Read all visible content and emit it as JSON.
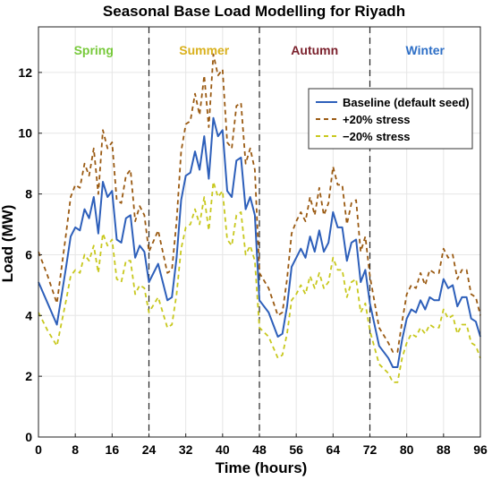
{
  "chart_data": {
    "type": "line",
    "title": "Seasonal Base Load Modelling for Riyadh",
    "xlabel": "Time (hours)",
    "ylabel": "Load (MW)",
    "xlim": [
      0,
      96
    ],
    "ylim": [
      0,
      13.5
    ],
    "xticks": [
      0,
      8,
      16,
      24,
      32,
      40,
      48,
      56,
      64,
      72,
      80,
      88,
      96
    ],
    "yticks": [
      0,
      2,
      4,
      6,
      8,
      10,
      12
    ],
    "grid": true,
    "legend_position": "top-right",
    "season_dividers": [
      24,
      48,
      72
    ],
    "seasons": [
      {
        "name": "Spring",
        "x": 12,
        "color": "#77c93a"
      },
      {
        "name": "Summer",
        "x": 36,
        "color": "#d9b01c"
      },
      {
        "name": "Autumn",
        "x": 60,
        "color": "#7a1f2b"
      },
      {
        "name": "Winter",
        "x": 84,
        "color": "#2e6fc6"
      }
    ],
    "x": [
      0,
      2,
      4,
      6,
      7,
      8,
      9,
      10,
      11,
      12,
      13,
      14,
      15,
      16,
      17,
      18,
      19,
      20,
      21,
      22,
      23,
      24,
      26,
      28,
      29,
      30,
      31,
      32,
      33,
      34,
      35,
      36,
      37,
      38,
      39,
      40,
      41,
      42,
      43,
      44,
      45,
      46,
      47,
      48,
      50,
      52,
      53,
      54,
      55,
      56,
      57,
      58,
      59,
      60,
      61,
      62,
      63,
      64,
      65,
      66,
      67,
      68,
      69,
      70,
      71,
      72,
      74,
      76,
      77,
      78,
      79,
      80,
      81,
      82,
      83,
      84,
      85,
      86,
      87,
      88,
      89,
      90,
      91,
      92,
      93,
      94,
      95,
      96
    ],
    "series": [
      {
        "name": "Baseline (default seed)",
        "color": "#2d5fba",
        "dash": "solid",
        "values": [
          5.1,
          4.4,
          3.7,
          5.6,
          6.6,
          6.9,
          6.8,
          7.5,
          7.2,
          7.9,
          6.7,
          8.4,
          7.9,
          8.1,
          6.5,
          6.4,
          7.2,
          7.3,
          5.9,
          6.3,
          6.1,
          5.1,
          5.7,
          4.5,
          4.6,
          5.9,
          7.8,
          8.6,
          8.7,
          9.4,
          8.8,
          9.9,
          8.5,
          10.5,
          9.9,
          10.1,
          8.1,
          7.9,
          9.1,
          9.2,
          7.5,
          7.9,
          7.3,
          4.5,
          4.1,
          3.3,
          3.4,
          4.3,
          5.6,
          5.9,
          6.2,
          5.9,
          6.6,
          6.1,
          6.8,
          6.1,
          6.4,
          7.4,
          6.9,
          6.9,
          5.8,
          6.4,
          6.5,
          5.1,
          5.5,
          4.4,
          3.0,
          2.6,
          2.3,
          2.3,
          3.2,
          3.9,
          4.2,
          4.1,
          4.5,
          4.2,
          4.6,
          4.5,
          4.5,
          5.2,
          4.9,
          5.0,
          4.3,
          4.6,
          4.6,
          3.9,
          3.8,
          3.3
        ]
      },
      {
        "name": "+20% stress",
        "color": "#9a5a12",
        "dash": "dashed",
        "values": [
          6.1,
          5.3,
          4.4,
          6.7,
          7.9,
          8.3,
          8.2,
          9.0,
          8.6,
          9.5,
          8.0,
          10.1,
          9.5,
          9.7,
          7.8,
          7.7,
          8.6,
          8.8,
          7.1,
          7.6,
          7.3,
          6.1,
          6.8,
          5.4,
          5.5,
          7.1,
          9.4,
          10.3,
          10.4,
          11.3,
          10.6,
          11.9,
          10.2,
          12.6,
          11.9,
          12.1,
          9.7,
          9.5,
          10.9,
          11.0,
          9.0,
          9.5,
          8.8,
          5.4,
          4.9,
          4.0,
          4.1,
          5.2,
          6.7,
          7.1,
          7.4,
          7.1,
          7.9,
          7.3,
          8.2,
          7.3,
          7.7,
          8.9,
          8.3,
          8.3,
          7.0,
          7.7,
          7.8,
          6.1,
          6.6,
          5.3,
          3.6,
          3.1,
          2.8,
          2.8,
          3.8,
          4.7,
          5.0,
          4.9,
          5.4,
          5.0,
          5.5,
          5.4,
          5.4,
          6.2,
          5.9,
          6.0,
          5.2,
          5.5,
          5.5,
          4.7,
          4.6,
          4.0
        ]
      },
      {
        "name": "−20% stress",
        "color": "#c8c81e",
        "dash": "dashed",
        "values": [
          4.1,
          3.5,
          3.0,
          4.5,
          5.3,
          5.5,
          5.4,
          6.0,
          5.8,
          6.3,
          5.4,
          6.7,
          6.3,
          6.5,
          5.2,
          5.1,
          5.8,
          5.8,
          4.7,
          5.0,
          4.9,
          4.1,
          4.6,
          3.6,
          3.7,
          4.7,
          6.2,
          6.9,
          7.0,
          7.5,
          7.0,
          7.9,
          6.8,
          8.4,
          7.9,
          8.1,
          6.5,
          6.3,
          7.3,
          7.4,
          6.0,
          6.3,
          5.8,
          3.6,
          3.3,
          2.6,
          2.7,
          3.4,
          4.5,
          4.7,
          5.0,
          4.7,
          5.3,
          4.9,
          5.4,
          4.9,
          5.1,
          5.9,
          5.5,
          5.5,
          4.6,
          5.1,
          5.2,
          4.1,
          4.4,
          3.5,
          2.4,
          2.1,
          1.8,
          1.8,
          2.6,
          3.1,
          3.4,
          3.3,
          3.6,
          3.4,
          3.7,
          3.6,
          3.6,
          4.2,
          3.9,
          4.0,
          3.4,
          3.7,
          3.7,
          3.1,
          3.0,
          2.6
        ]
      }
    ]
  }
}
